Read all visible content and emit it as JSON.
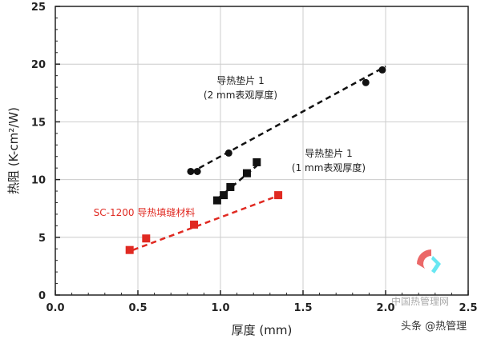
{
  "chart_data": {
    "type": "scatter",
    "xlabel": "厚度 (mm)",
    "ylabel": "热阻 (K-cm²/W)",
    "xlim": [
      0,
      2.5
    ],
    "ylim": [
      0,
      25
    ],
    "xticks": [
      "0.0",
      "0.5",
      "1.0",
      "1.5",
      "2.0",
      "2.5"
    ],
    "yticks": [
      "0",
      "5",
      "10",
      "15",
      "20",
      "25"
    ],
    "grid": true,
    "series": [
      {
        "name": "导热垫片 1 (2 mm表观厚度)",
        "label_lines": [
          "导热垫片 1",
          "(2 mm表观厚度)"
        ],
        "marker": "circle",
        "color": "#111111",
        "x": [
          0.82,
          0.86,
          1.05,
          1.88,
          1.98
        ],
        "y": [
          10.7,
          10.7,
          12.3,
          18.4,
          19.5
        ],
        "trend": [
          [
            0.82,
            10.6
          ],
          [
            2.0,
            19.8
          ]
        ]
      },
      {
        "name": "导热垫片 1 (1 mm表观厚度)",
        "label_lines": [
          "导热垫片 1",
          "(1 mm表观厚度)"
        ],
        "marker": "square",
        "color": "#111111",
        "x": [
          0.98,
          1.02,
          1.06,
          1.16,
          1.22
        ],
        "y": [
          8.2,
          8.65,
          9.35,
          10.55,
          11.5
        ],
        "trend": [
          [
            0.98,
            8.3
          ],
          [
            1.22,
            11.2
          ]
        ]
      },
      {
        "name": "SC-1200 导热填缝材料",
        "label_lines": [
          "SC-1200 导热填缝材料"
        ],
        "marker": "square",
        "color": "#e02a22",
        "x": [
          0.45,
          0.55,
          0.84,
          1.35
        ],
        "y": [
          3.9,
          4.9,
          6.1,
          8.65
        ],
        "trend": [
          [
            0.47,
            3.9
          ],
          [
            1.35,
            8.6
          ]
        ]
      }
    ]
  },
  "watermark": {
    "site": "中国热管理网",
    "credit": "头条 @热管理"
  }
}
